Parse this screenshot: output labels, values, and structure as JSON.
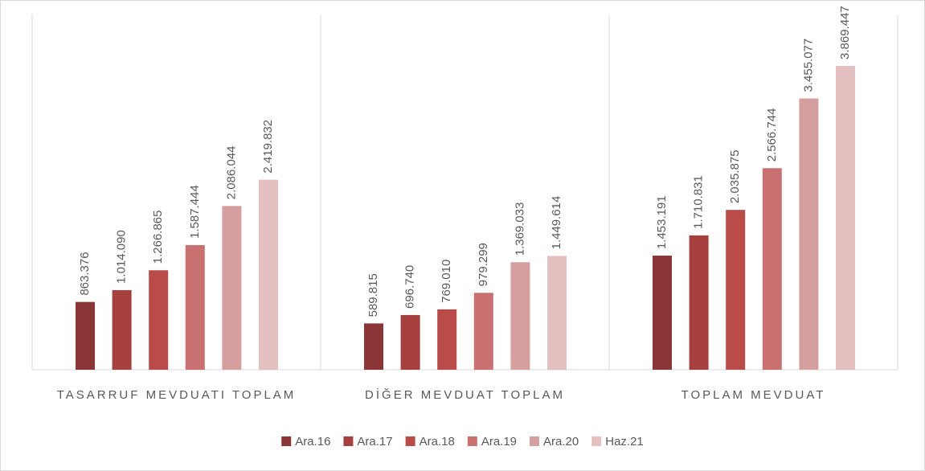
{
  "chart_data": {
    "type": "bar",
    "categories": [
      "TASARRUF MEVDUATI TOPLAM",
      "DİĞER MEVDUAT TOPLAM",
      "TOPLAM MEVDUAT"
    ],
    "series": [
      {
        "name": "Ara.16",
        "color": "#8b3636",
        "values": [
          863376,
          589815,
          1453191
        ],
        "value_labels": [
          "863.376",
          "589.815",
          "1.453.191"
        ]
      },
      {
        "name": "Ara.17",
        "color": "#a6403e",
        "values": [
          1014090,
          696740,
          1710831
        ],
        "value_labels": [
          "1.014.090",
          "696.740",
          "1.710.831"
        ]
      },
      {
        "name": "Ara.18",
        "color": "#b94b49",
        "values": [
          1266865,
          769010,
          2035875
        ],
        "value_labels": [
          "1.266.865",
          "769.010",
          "2.035.875"
        ]
      },
      {
        "name": "Ara.19",
        "color": "#c97170",
        "values": [
          1587444,
          979299,
          2566744
        ],
        "value_labels": [
          "1.587.444",
          "979.299",
          "2.566.744"
        ]
      },
      {
        "name": "Ara.20",
        "color": "#d69f9f",
        "values": [
          2086044,
          1369033,
          3455077
        ],
        "value_labels": [
          "2.086.044",
          "1.369.033",
          "3.455.077"
        ]
      },
      {
        "name": "Haz.21",
        "color": "#e5c0c1",
        "values": [
          2419832,
          1449614,
          3869447
        ],
        "value_labels": [
          "2.419.832",
          "1.449.614",
          "3.869.447"
        ]
      }
    ],
    "legend": "bottom"
  }
}
